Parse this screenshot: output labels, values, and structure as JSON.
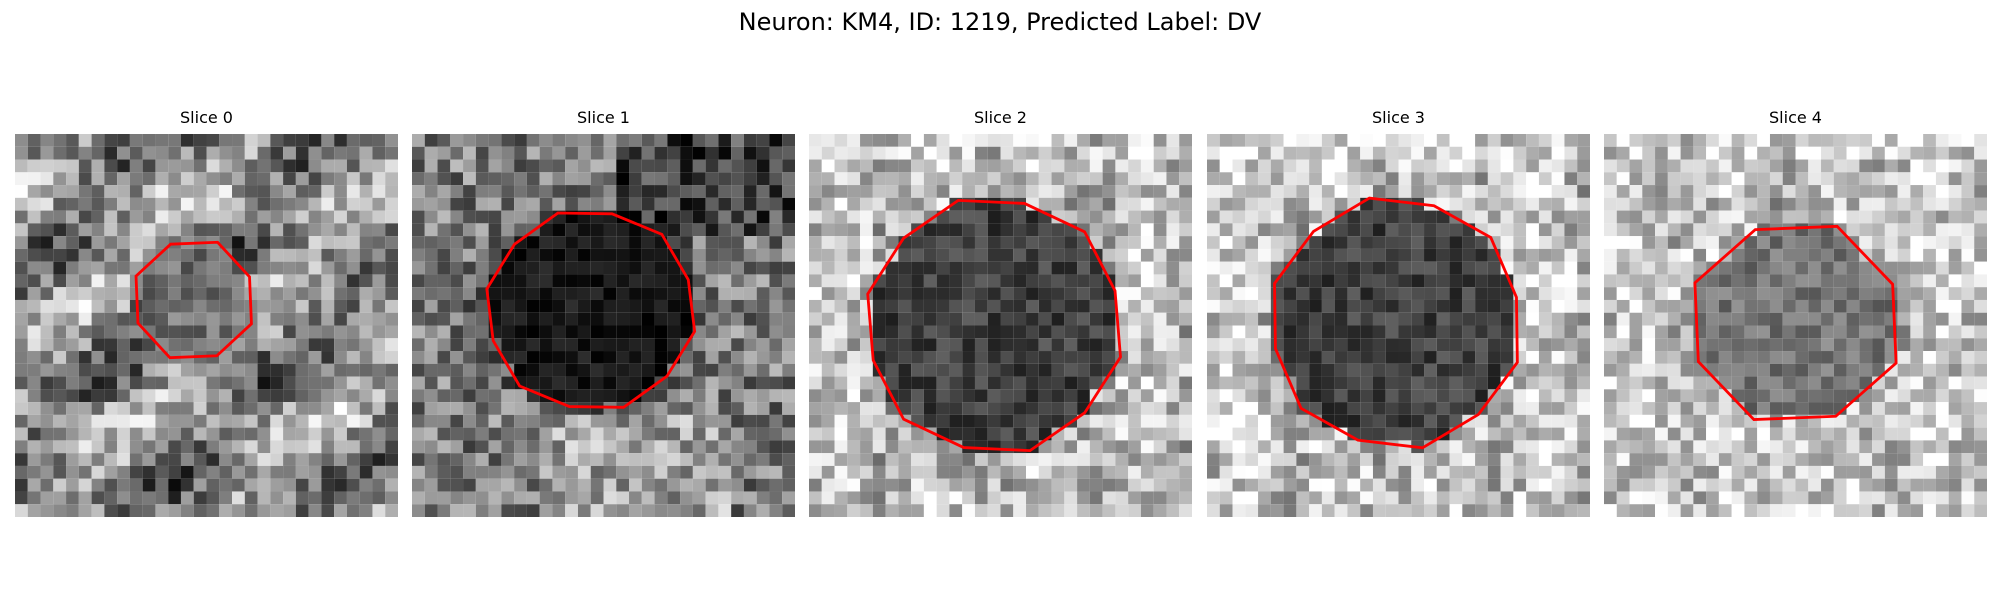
{
  "figure": {
    "title": "Neuron: KM4, ID: 1219, Predicted Label: DV"
  },
  "slices": [
    {
      "title": "Slice 0",
      "tone": "mixed gray noise with a small dark blob",
      "contour_shape": "small octagon",
      "contour_color": "#ff0000",
      "blob_darkness": 0.55,
      "blob_relative_radius": 0.16,
      "background_level": 0.55
    },
    {
      "title": "Slice 1",
      "tone": "large very dark blob on mixed background",
      "contour_shape": "large irregular polygon",
      "contour_color": "#ff0000",
      "blob_darkness": 0.95,
      "blob_relative_radius": 0.27,
      "background_level": 0.48
    },
    {
      "title": "Slice 2",
      "tone": "dark textured nucleus on light gray background",
      "contour_shape": "large rounded polygon",
      "contour_color": "#ff0000",
      "blob_darkness": 0.75,
      "blob_relative_radius": 0.33,
      "background_level": 0.75
    },
    {
      "title": "Slice 3",
      "tone": "dark textured nucleus on light gray background",
      "contour_shape": "large rounded polygon",
      "contour_color": "#ff0000",
      "blob_darkness": 0.75,
      "blob_relative_radius": 0.32,
      "background_level": 0.78
    },
    {
      "title": "Slice 4",
      "tone": "medium dark blob on light gray background",
      "contour_shape": "medium octagon",
      "contour_color": "#ff0000",
      "blob_darkness": 0.55,
      "blob_relative_radius": 0.27,
      "background_level": 0.78
    }
  ]
}
